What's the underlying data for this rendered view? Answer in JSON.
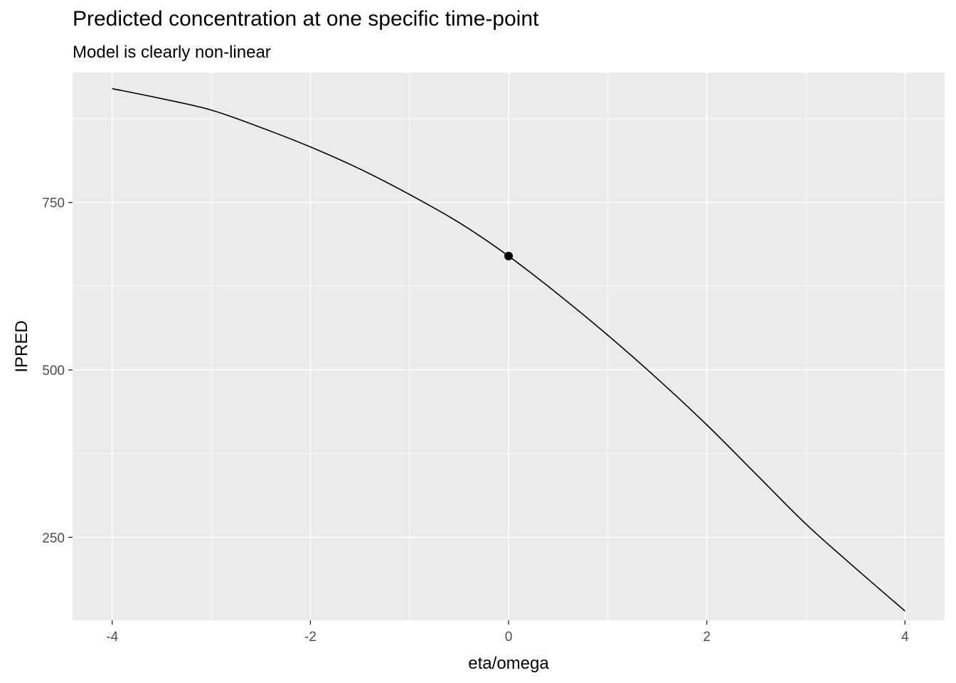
{
  "chart_data": {
    "type": "line",
    "title": "Predicted concentration at one specific time-point",
    "subtitle": "Model is clearly non-linear",
    "xlabel": "eta/omega",
    "ylabel": "IPRED",
    "xlim": [
      -4.4,
      4.4
    ],
    "ylim": [
      126,
      944
    ],
    "x_ticks": [
      -4,
      -2,
      0,
      2,
      4
    ],
    "x_tick_labels": [
      "-4",
      "-2",
      "0",
      "2",
      "4"
    ],
    "y_ticks": [
      250,
      500,
      750
    ],
    "y_tick_labels": [
      "250",
      "500",
      "750"
    ],
    "grid": true,
    "background": "#ebebeb",
    "gridline_color": "#ffffff",
    "line_color": "#000000",
    "series": [
      {
        "x": [
          -4,
          -3.5,
          -3,
          -2.5,
          -2,
          -1.5,
          -1,
          -0.5,
          0,
          0.5,
          1,
          1.5,
          2,
          2.5,
          3,
          3.5,
          4
        ],
        "values": [
          920,
          905,
          888,
          862,
          833,
          800,
          762,
          720,
          670,
          613,
          552,
          487,
          418,
          344,
          270,
          204,
          140
        ]
      }
    ],
    "highlight_point": {
      "x": 0,
      "y": 670
    }
  }
}
